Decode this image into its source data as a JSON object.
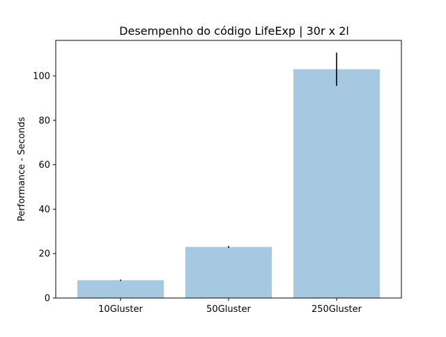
{
  "chart_data": {
    "type": "bar",
    "title": "Desempenho do código LifeExp | 30r x 2l",
    "xlabel": "",
    "ylabel": "Performance - Seconds",
    "categories": [
      "10Gluster",
      "50Gluster",
      "250Gluster"
    ],
    "values": [
      8.0,
      23.0,
      103.0
    ],
    "error": [
      0.3,
      0.4,
      7.5
    ],
    "ylim": [
      0,
      116
    ],
    "yticks": [
      0,
      20,
      40,
      60,
      80,
      100
    ],
    "grid": false,
    "legend": "none",
    "colors": {
      "bar": "#a6c8e0",
      "error_bar": "#000000",
      "axes": "#000000"
    }
  }
}
